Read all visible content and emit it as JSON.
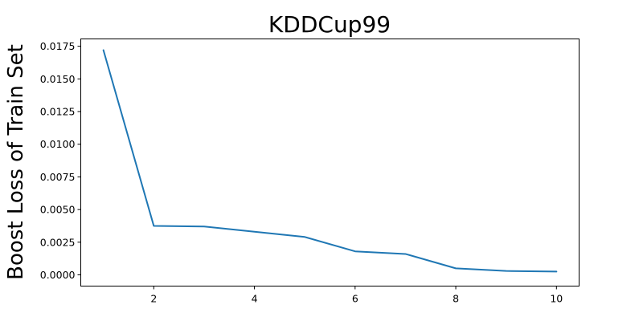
{
  "chart_data": {
    "type": "line",
    "title": "KDDCup99",
    "xlabel": "",
    "ylabel": "Boost Loss of Train Set",
    "xlim": [
      0.55,
      10.45
    ],
    "ylim": [
      -0.00086,
      0.01806
    ],
    "xticks": [
      2,
      4,
      6,
      8,
      10
    ],
    "xtick_labels": [
      "2",
      "4",
      "6",
      "8",
      "10"
    ],
    "yticks": [
      0.0,
      0.0025,
      0.005,
      0.0075,
      0.01,
      0.0125,
      0.015,
      0.0175
    ],
    "ytick_labels": [
      "0.0000",
      "0.0025",
      "0.0050",
      "0.0075",
      "0.0100",
      "0.0125",
      "0.0150",
      "0.0175"
    ],
    "grid": false,
    "series": [
      {
        "color": "#1f77b4",
        "x": [
          1,
          2,
          3,
          4,
          5,
          6,
          7,
          8,
          9,
          10
        ],
        "values": [
          0.0172,
          0.00375,
          0.0037,
          0.0033,
          0.0029,
          0.0018,
          0.0016,
          0.0005,
          0.0003,
          0.00025
        ]
      }
    ]
  }
}
